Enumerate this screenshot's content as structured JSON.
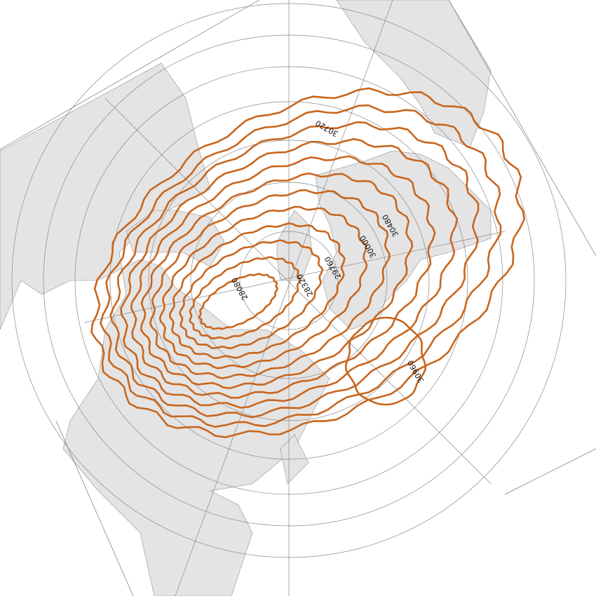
{
  "map": {
    "projection": "north-polar-stereographic",
    "land_color": "#e4e4e4",
    "contour_color": "#c8661e",
    "grid_color": "#888888",
    "contour_levels": [
      28080,
      28320,
      28560,
      28800,
      29040,
      29280,
      29520,
      29760,
      30000,
      30240,
      30480,
      30720,
      30960
    ],
    "contour_labels": [
      {
        "text": "30720"
      },
      {
        "text": "30480"
      },
      {
        "text": "30000"
      },
      {
        "text": "29760"
      },
      {
        "text": "28320"
      },
      {
        "text": "28080"
      },
      {
        "text": "30960"
      }
    ]
  }
}
